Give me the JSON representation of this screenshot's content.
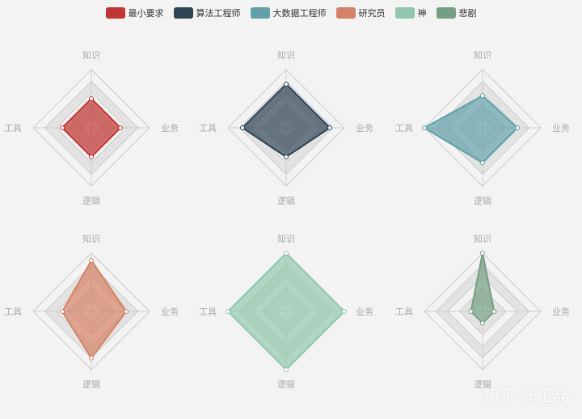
{
  "legend": [
    {
      "label": "最小要求",
      "color": "#c23531"
    },
    {
      "label": "算法工程师",
      "color": "#2f4554"
    },
    {
      "label": "大数据工程师",
      "color": "#61a0a8"
    },
    {
      "label": "研究员",
      "color": "#d48265"
    },
    {
      "label": "神",
      "color": "#91c7ae"
    },
    {
      "label": "悲剧",
      "color": "#749f83"
    }
  ],
  "indicators": [
    "知识",
    "业务",
    "逻辑",
    "工具"
  ],
  "chart_data": [
    {
      "type": "radar",
      "name": "最小要求",
      "color": "#c23531",
      "values": [
        2,
        2,
        2,
        2
      ],
      "max": 4
    },
    {
      "type": "radar",
      "name": "算法工程师",
      "color": "#2f4554",
      "values": [
        3,
        3,
        2,
        3
      ],
      "max": 4
    },
    {
      "type": "radar",
      "name": "大数据工程师",
      "color": "#61a0a8",
      "values": [
        2.2,
        2.4,
        2.4,
        4
      ],
      "max": 4
    },
    {
      "type": "radar",
      "name": "研究员",
      "color": "#d48265",
      "values": [
        3.5,
        2.4,
        3.2,
        2
      ],
      "max": 4
    },
    {
      "type": "radar",
      "name": "神",
      "color": "#91c7ae",
      "values": [
        4,
        4,
        4,
        4
      ],
      "max": 4
    },
    {
      "type": "radar",
      "name": "悲剧",
      "color": "#749f83",
      "values": [
        4,
        0.8,
        0.8,
        0.8
      ],
      "max": 4
    }
  ],
  "watermark": "知乎 @王喆"
}
